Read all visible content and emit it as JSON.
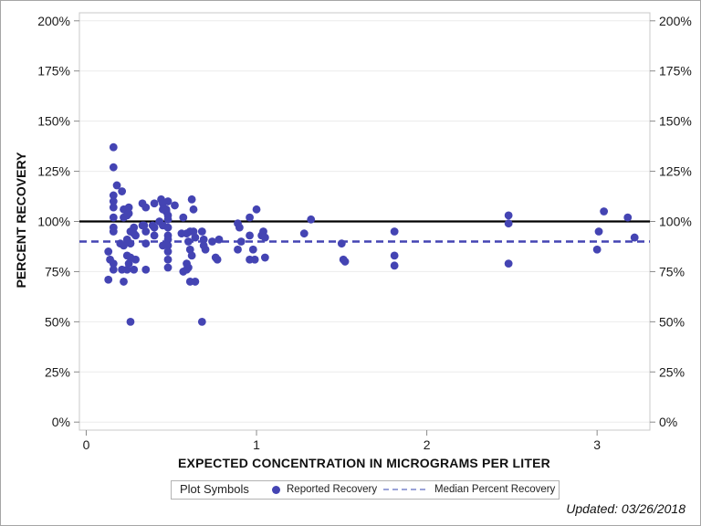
{
  "page": {
    "updated_note": "Updated: 03/26/2018"
  },
  "chart_data": {
    "type": "scatter",
    "title": "",
    "xlabel": "EXPECTED CONCENTRATION IN MICROGRAMS PER LITER",
    "ylabel": "PERCENT RECOVERY",
    "x_ticks": [
      0,
      1,
      2,
      3
    ],
    "y_ticks_percent": [
      0,
      25,
      50,
      75,
      100,
      125,
      150,
      175,
      200
    ],
    "y_tick_suffix": "%",
    "xlim": [
      -0.04,
      3.31
    ],
    "ylim_percent": [
      -4,
      204
    ],
    "grid": "horizontal-only",
    "duplicate_right_axis_labels": true,
    "colors": {
      "marker": "#4444b3",
      "median_line": "#4444b3",
      "target_line": "#000000",
      "gridline": "#ececec",
      "frame": "#c8c8c8",
      "tick": "#8a8a8a",
      "tick_label": "#1a1a1a",
      "legend_dash_sample": "#9aa3d8"
    },
    "reference_lines": [
      {
        "name": "target-100-percent",
        "value_percent": 100,
        "style": "solid",
        "color": "#000000"
      },
      {
        "name": "median-percent-recovery",
        "value_percent": 90,
        "style": "dashed",
        "color": "#4444b3"
      }
    ],
    "legend": {
      "position": "bottom-center",
      "title": "Plot Symbols",
      "entries": [
        {
          "label": "Reported Recovery",
          "symbol": "dot",
          "color": "#4444b3"
        },
        {
          "label": "Median Percent Recovery",
          "symbol": "dashed-line",
          "color": "#9aa3d8"
        }
      ]
    },
    "series": [
      {
        "name": "Reported Recovery",
        "marker": "circle",
        "color": "#4444b3",
        "points": [
          [
            0.16,
            137
          ],
          [
            0.16,
            127
          ],
          [
            0.18,
            118
          ],
          [
            0.21,
            115
          ],
          [
            0.16,
            113
          ],
          [
            0.16,
            110
          ],
          [
            0.16,
            107
          ],
          [
            0.22,
            106
          ],
          [
            0.24,
            103
          ],
          [
            0.25,
            107
          ],
          [
            0.25,
            104
          ],
          [
            0.16,
            102
          ],
          [
            0.22,
            102
          ],
          [
            0.16,
            97
          ],
          [
            0.16,
            95
          ],
          [
            0.28,
            97
          ],
          [
            0.26,
            95
          ],
          [
            0.28,
            94
          ],
          [
            0.29,
            93
          ],
          [
            0.24,
            91
          ],
          [
            0.2,
            89
          ],
          [
            0.22,
            88
          ],
          [
            0.26,
            89
          ],
          [
            0.24,
            83
          ],
          [
            0.26,
            82
          ],
          [
            0.29,
            81
          ],
          [
            0.13,
            85
          ],
          [
            0.14,
            81
          ],
          [
            0.16,
            79
          ],
          [
            0.25,
            79
          ],
          [
            0.16,
            76
          ],
          [
            0.21,
            76
          ],
          [
            0.24,
            76
          ],
          [
            0.28,
            76
          ],
          [
            0.13,
            71
          ],
          [
            0.22,
            70
          ],
          [
            0.26,
            50
          ],
          [
            0.33,
            109
          ],
          [
            0.35,
            107
          ],
          [
            0.4,
            109
          ],
          [
            0.44,
            111
          ],
          [
            0.45,
            109
          ],
          [
            0.45,
            106
          ],
          [
            0.47,
            105
          ],
          [
            0.43,
            100
          ],
          [
            0.33,
            98
          ],
          [
            0.34,
            98
          ],
          [
            0.39,
            98
          ],
          [
            0.4,
            97
          ],
          [
            0.45,
            98
          ],
          [
            0.35,
            95
          ],
          [
            0.4,
            93
          ],
          [
            0.35,
            89
          ],
          [
            0.45,
            88
          ],
          [
            0.35,
            76
          ],
          [
            0.48,
            110
          ],
          [
            0.47,
            106
          ],
          [
            0.48,
            103
          ],
          [
            0.48,
            101
          ],
          [
            0.48,
            97
          ],
          [
            0.48,
            93
          ],
          [
            0.48,
            91
          ],
          [
            0.48,
            88
          ],
          [
            0.48,
            85
          ],
          [
            0.48,
            81
          ],
          [
            0.48,
            77
          ],
          [
            0.52,
            108
          ],
          [
            0.62,
            111
          ],
          [
            0.63,
            106
          ],
          [
            0.57,
            102
          ],
          [
            0.56,
            94
          ],
          [
            0.59,
            94
          ],
          [
            0.61,
            95
          ],
          [
            0.63,
            95
          ],
          [
            0.64,
            92
          ],
          [
            0.6,
            90
          ],
          [
            0.61,
            86
          ],
          [
            0.62,
            83
          ],
          [
            0.59,
            79
          ],
          [
            0.6,
            77
          ],
          [
            0.68,
            95
          ],
          [
            0.69,
            91
          ],
          [
            0.69,
            88
          ],
          [
            0.7,
            86
          ],
          [
            0.74,
            90
          ],
          [
            0.78,
            91
          ],
          [
            0.76,
            82
          ],
          [
            0.57,
            75
          ],
          [
            0.59,
            76
          ],
          [
            0.61,
            70
          ],
          [
            0.64,
            70
          ],
          [
            0.68,
            50
          ],
          [
            0.77,
            81
          ],
          [
            0.89,
            99
          ],
          [
            0.9,
            97
          ],
          [
            0.91,
            90
          ],
          [
            0.96,
            102
          ],
          [
            1.0,
            106
          ],
          [
            0.96,
            93
          ],
          [
            1.04,
            95
          ],
          [
            1.03,
            93
          ],
          [
            1.05,
            92
          ],
          [
            0.89,
            86
          ],
          [
            0.98,
            86
          ],
          [
            0.96,
            81
          ],
          [
            0.99,
            81
          ],
          [
            1.05,
            82
          ],
          [
            1.28,
            94
          ],
          [
            1.32,
            101
          ],
          [
            1.5,
            89
          ],
          [
            1.51,
            81
          ],
          [
            1.52,
            80
          ],
          [
            1.81,
            95
          ],
          [
            1.81,
            83
          ],
          [
            1.81,
            78
          ],
          [
            2.48,
            103
          ],
          [
            2.48,
            99
          ],
          [
            2.48,
            79
          ],
          [
            3.0,
            86
          ],
          [
            3.01,
            95
          ],
          [
            3.04,
            105
          ],
          [
            3.18,
            102
          ],
          [
            3.22,
            92
          ]
        ]
      }
    ]
  }
}
